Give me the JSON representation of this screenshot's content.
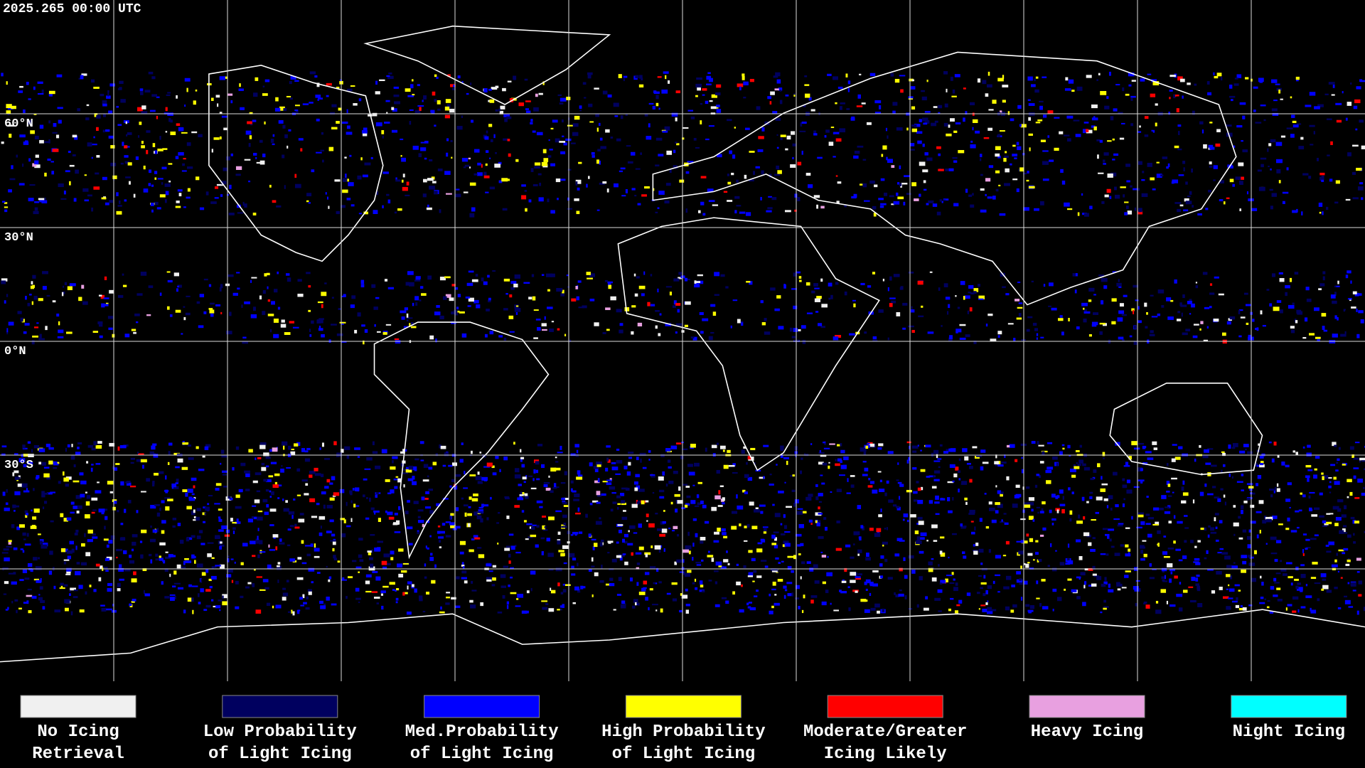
{
  "header": {
    "timestamp": "2025.265 00:00 UTC"
  },
  "map": {
    "latitude_labels": [
      "60°N",
      "30°N",
      "0°N",
      "30°S"
    ]
  },
  "legend": {
    "items": [
      {
        "lines": [
          "No Icing",
          "Retrieval"
        ],
        "color": "#f0f0f0"
      },
      {
        "lines": [
          "Low Probability",
          "of Light Icing"
        ],
        "color": "#00005f"
      },
      {
        "lines": [
          "Med.Probability",
          "of Light Icing"
        ],
        "color": "#0000ff"
      },
      {
        "lines": [
          "High Probability",
          "of Light Icing"
        ],
        "color": "#ffff00"
      },
      {
        "lines": [
          "Moderate/Greater",
          "Icing Likely"
        ],
        "color": "#ff0000"
      },
      {
        "lines": [
          "Heavy Icing"
        ],
        "color": "#e8a0e0"
      },
      {
        "lines": [
          "Night Icing"
        ],
        "color": "#00ffff"
      }
    ]
  }
}
